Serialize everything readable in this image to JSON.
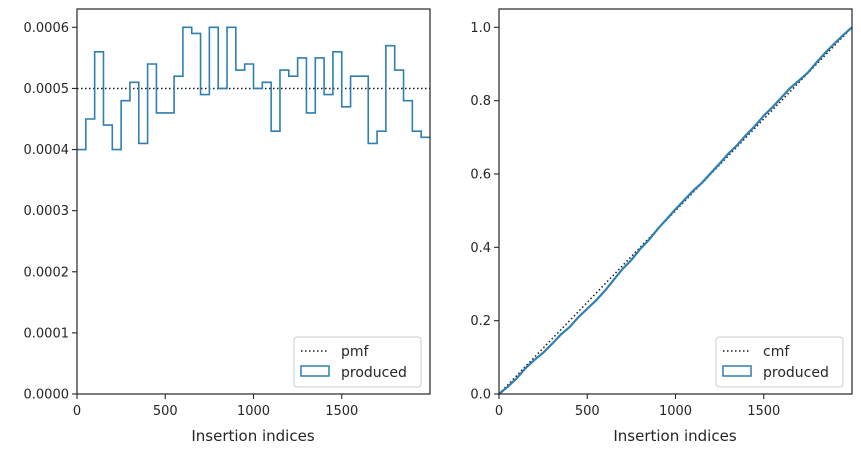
{
  "chart_data": [
    {
      "type": "step",
      "xlabel": "Insertion indices",
      "ylabel": "",
      "xlim": [
        0,
        2000
      ],
      "ylim": [
        0,
        0.00063
      ],
      "xticks": [
        0,
        500,
        1000,
        1500
      ],
      "xtick_labels": [
        "0",
        "500",
        "1000",
        "1500"
      ],
      "yticks": [
        0,
        0.0001,
        0.0002,
        0.0003,
        0.0004,
        0.0005,
        0.0006
      ],
      "ytick_labels": [
        "0.0000",
        "0.0001",
        "0.0002",
        "0.0003",
        "0.0004",
        "0.0005",
        "0.0006"
      ],
      "legend_position": "lower-right",
      "series": [
        {
          "name": "pmf",
          "style": "dotted",
          "color": "#1a1a1a",
          "x": [
            0,
            2000
          ],
          "values": [
            0.0005,
            0.0005
          ]
        },
        {
          "name": "produced",
          "style": "step",
          "color": "#2f7fb0",
          "bin_edges": [
            0,
            50,
            100,
            150,
            200,
            250,
            300,
            350,
            400,
            450,
            500,
            550,
            600,
            650,
            700,
            750,
            800,
            850,
            900,
            950,
            1000,
            1050,
            1100,
            1150,
            1200,
            1250,
            1300,
            1350,
            1400,
            1450,
            1500,
            1550,
            1600,
            1650,
            1700,
            1750,
            1800,
            1850,
            1900,
            1950,
            2000
          ],
          "values": [
            0.0004,
            0.00045,
            0.00056,
            0.00044,
            0.0004,
            0.00048,
            0.00051,
            0.00041,
            0.00054,
            0.00046,
            0.00046,
            0.00052,
            0.0006,
            0.00059,
            0.00049,
            0.0006,
            0.0005,
            0.0006,
            0.00053,
            0.00054,
            0.0005,
            0.00051,
            0.00043,
            0.00053,
            0.00052,
            0.00055,
            0.00046,
            0.00055,
            0.00049,
            0.00056,
            0.00047,
            0.00052,
            0.00052,
            0.00041,
            0.00043,
            0.00057,
            0.00053,
            0.00048,
            0.00043,
            0.00042
          ]
        }
      ]
    },
    {
      "type": "line",
      "xlabel": "Insertion indices",
      "ylabel": "",
      "xlim": [
        0,
        2000
      ],
      "ylim": [
        0,
        1.05
      ],
      "xticks": [
        0,
        500,
        1000,
        1500
      ],
      "xtick_labels": [
        "0",
        "500",
        "1000",
        "1500"
      ],
      "yticks": [
        0,
        0.2,
        0.4,
        0.6,
        0.8,
        1.0
      ],
      "ytick_labels": [
        "0.0",
        "0.2",
        "0.4",
        "0.6",
        "0.8",
        "1.0"
      ],
      "legend_position": "lower-right",
      "series": [
        {
          "name": "cmf",
          "style": "dotted",
          "color": "#1a1a1a",
          "x": [
            0,
            2000
          ],
          "values": [
            0,
            1.0
          ]
        },
        {
          "name": "produced",
          "style": "line",
          "color": "#2f7fb0",
          "x": [
            0,
            50,
            100,
            150,
            200,
            250,
            300,
            350,
            400,
            450,
            500,
            550,
            600,
            650,
            700,
            750,
            800,
            850,
            900,
            950,
            1000,
            1050,
            1100,
            1150,
            1200,
            1250,
            1300,
            1350,
            1400,
            1450,
            1500,
            1550,
            1600,
            1650,
            1700,
            1750,
            1800,
            1850,
            1900,
            1950,
            2000
          ],
          "values": [
            0,
            0.02,
            0.0425,
            0.0705,
            0.0925,
            0.1125,
            0.1365,
            0.162,
            0.1825,
            0.2095,
            0.2325,
            0.2555,
            0.2815,
            0.3115,
            0.341,
            0.3655,
            0.3955,
            0.4205,
            0.4505,
            0.477,
            0.504,
            0.529,
            0.5545,
            0.576,
            0.6025,
            0.6285,
            0.656,
            0.679,
            0.7065,
            0.731,
            0.759,
            0.7825,
            0.8085,
            0.8345,
            0.855,
            0.8765,
            0.905,
            0.9315,
            0.9555,
            0.979,
            1.0
          ]
        }
      ]
    }
  ]
}
